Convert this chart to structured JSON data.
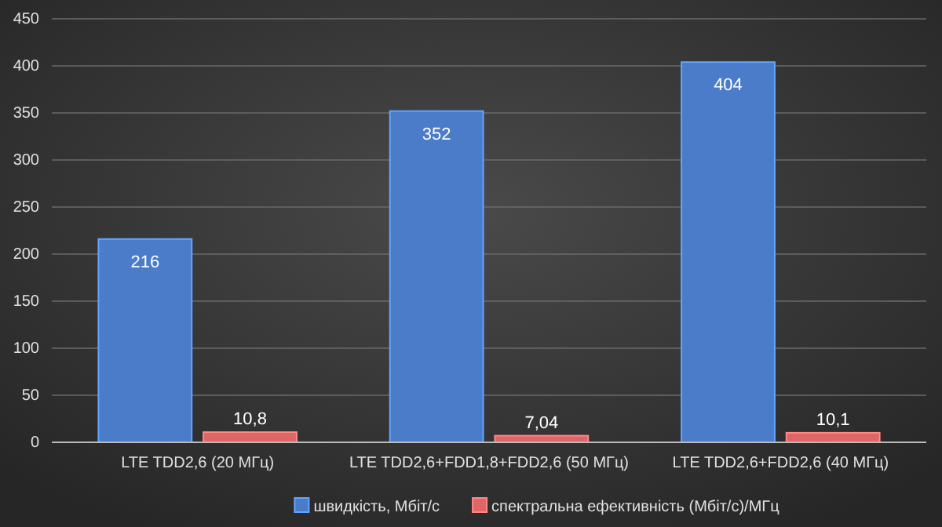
{
  "chart_data": {
    "type": "bar",
    "categories": [
      "LTE TDD2,6 (20 МГц)",
      "LTE TDD2,6+FDD1,8+FDD2,6 (50 МГц)",
      "LTE TDD2,6+FDD2,6 (40 МГц)"
    ],
    "series": [
      {
        "name": "швидкість, Мбіт/с",
        "color": "#4a7cc9",
        "values": [
          216,
          352,
          404
        ],
        "value_labels": [
          "216",
          "352",
          "404"
        ]
      },
      {
        "name": "спектральна ефективність (Мбіт/с)/МГц",
        "color": "#e06666",
        "values": [
          10.8,
          7.04,
          10.1
        ],
        "value_labels": [
          "10,8",
          "7,04",
          "10,1"
        ]
      }
    ],
    "ylim": [
      0,
      450
    ],
    "yticks": [
      0,
      50,
      100,
      150,
      200,
      250,
      300,
      350,
      400,
      450
    ],
    "grid": "y",
    "legend": "bottom"
  }
}
